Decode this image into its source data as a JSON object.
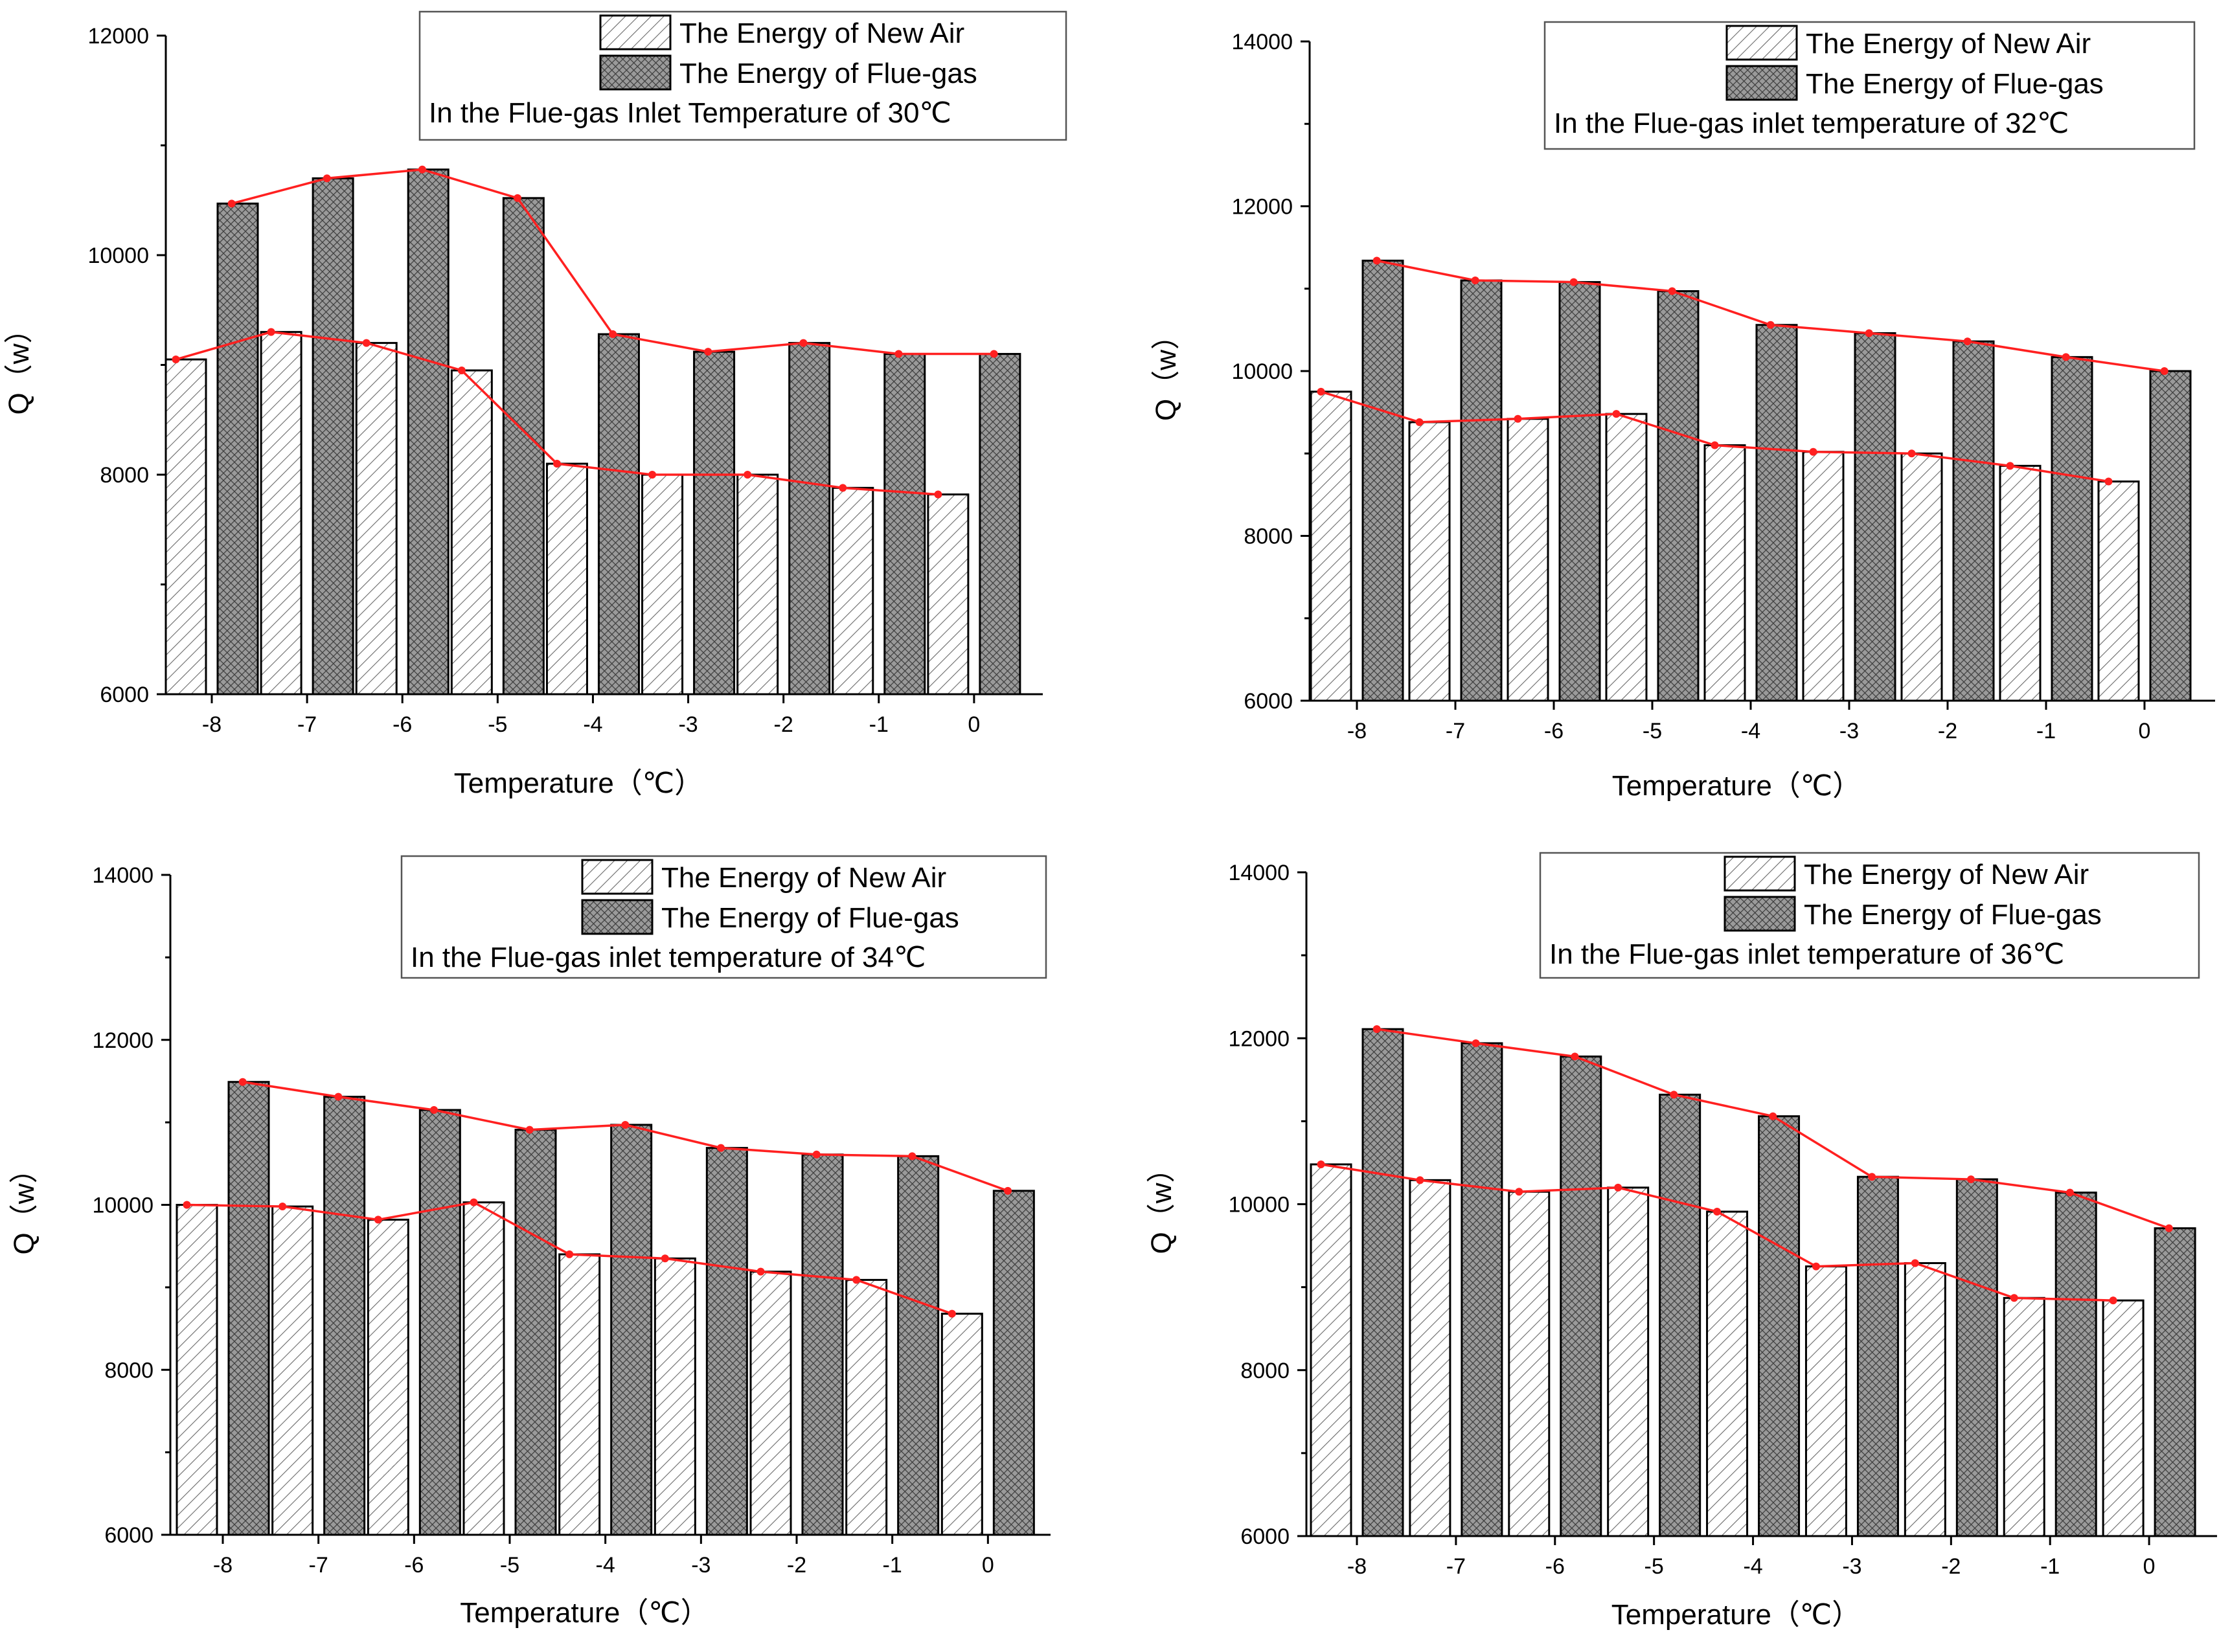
{
  "colors": {
    "axis": "#000000",
    "line": "#ff2020",
    "bar_fill": "#ffffff",
    "hatch": "#555555",
    "crosshatch": "#555555"
  },
  "chart_data": [
    {
      "type": "bar",
      "title": "",
      "categories": [
        "-8",
        "-7",
        "-6",
        "-5",
        "-4",
        "-3",
        "-2",
        "-1",
        "0"
      ],
      "xlabel": "Temperature（℃）",
      "ylabel": "Q（w）",
      "ylim": [
        6000,
        12000
      ],
      "yticks": [
        "6000",
        "8000",
        "10000",
        "12000"
      ],
      "series": [
        {
          "name": "The Energy of New Air",
          "pattern": "hatch",
          "values": [
            9050,
            9300,
            9200,
            8950,
            8100,
            8000,
            8000,
            7880,
            7820
          ]
        },
        {
          "name": "The Energy of Flue-gas",
          "pattern": "crosshatch",
          "values": [
            10470,
            10700,
            10780,
            10520,
            9280,
            9120,
            9200,
            9100,
            9100
          ]
        }
      ],
      "legend_note": "In the Flue-gas Inlet Temperature of 30℃"
    },
    {
      "type": "bar",
      "title": "",
      "categories": [
        "-8",
        "-7",
        "-6",
        "-5",
        "-4",
        "-3",
        "-2",
        "-1",
        "0"
      ],
      "xlabel": "Temperature（℃）",
      "ylabel": "Q（w）",
      "ylim": [
        6000,
        14000
      ],
      "yticks": [
        "6000",
        "8000",
        "10000",
        "12000",
        "14000"
      ],
      "series": [
        {
          "name": "The Energy of New Air",
          "pattern": "hatch",
          "values": [
            9750,
            9380,
            9420,
            9480,
            9100,
            9020,
            9000,
            8850,
            8660
          ]
        },
        {
          "name": "The Energy of Flue-gas",
          "pattern": "crosshatch",
          "values": [
            11340,
            11100,
            11080,
            10970,
            10560,
            10460,
            10360,
            10170,
            10000
          ]
        }
      ],
      "legend_note": "In the Flue-gas inlet temperature of 32℃"
    },
    {
      "type": "bar",
      "title": "",
      "categories": [
        "-8",
        "-7",
        "-6",
        "-5",
        "-4",
        "-3",
        "-2",
        "-1",
        "0"
      ],
      "xlabel": "Temperature（℃）",
      "ylabel": "Q（w）",
      "ylim": [
        6000,
        14000
      ],
      "yticks": [
        "6000",
        "8000",
        "10000",
        "12000",
        "14000"
      ],
      "series": [
        {
          "name": "The Energy of New Air",
          "pattern": "hatch",
          "values": [
            10000,
            9980,
            9820,
            10030,
            9400,
            9350,
            9190,
            9090,
            8680
          ]
        },
        {
          "name": "The Energy of Flue-gas",
          "pattern": "crosshatch",
          "values": [
            11490,
            11310,
            11150,
            10910,
            10970,
            10690,
            10610,
            10590,
            10170
          ]
        }
      ],
      "legend_note": "In the Flue-gas inlet temperature of 34℃"
    },
    {
      "type": "bar",
      "title": "",
      "categories": [
        "-8",
        "-7",
        "-6",
        "-5",
        "-4",
        "-3",
        "-2",
        "-1",
        "0"
      ],
      "xlabel": "Temperature（℃）",
      "ylabel": "Q（w）",
      "ylim": [
        6000,
        14000
      ],
      "yticks": [
        "6000",
        "8000",
        "10000",
        "12000",
        "14000"
      ],
      "series": [
        {
          "name": "The Energy of New Air",
          "pattern": "hatch",
          "values": [
            10480,
            10290,
            10150,
            10200,
            9910,
            9250,
            9290,
            8870,
            8840
          ]
        },
        {
          "name": "The Energy of Flue-gas",
          "pattern": "crosshatch",
          "values": [
            12110,
            11940,
            11780,
            11320,
            11060,
            10330,
            10300,
            10140,
            9710
          ]
        }
      ],
      "legend_note": "In the Flue-gas inlet temperature of 36℃"
    }
  ]
}
